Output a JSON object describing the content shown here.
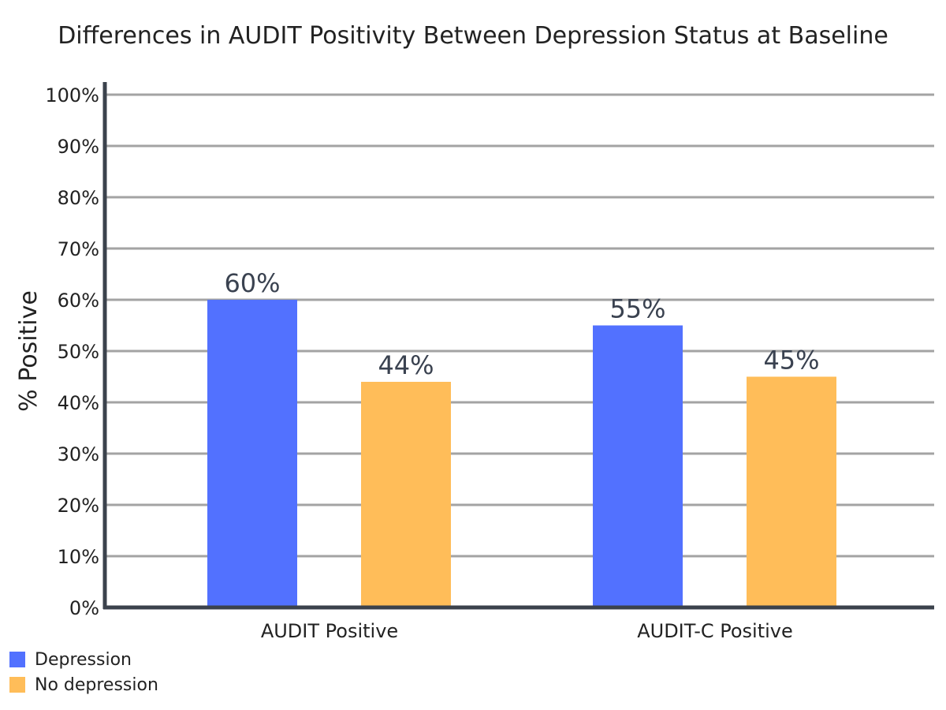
{
  "chart_data": {
    "type": "bar",
    "title": "Differences in AUDIT Positivity Between Depression Status at Baseline",
    "ylabel": "% Positive",
    "xlabel": "",
    "categories": [
      "AUDIT Positive",
      "AUDIT-C Positive"
    ],
    "series": [
      {
        "name": "Depression",
        "color": "#5271ff",
        "values": [
          60,
          55
        ],
        "labels": [
          "60%",
          "55%"
        ]
      },
      {
        "name": "No depression",
        "color": "#ffbd59",
        "values": [
          44,
          45
        ],
        "labels": [
          "44%",
          "45%"
        ]
      }
    ],
    "ylim": [
      0,
      100
    ],
    "yticks": [
      0,
      10,
      20,
      30,
      40,
      50,
      60,
      70,
      80,
      90,
      100
    ],
    "ytick_labels": [
      "0%",
      "10%",
      "20%",
      "30%",
      "40%",
      "50%",
      "60%",
      "70%",
      "80%",
      "90%",
      "100%"
    ],
    "grid": true,
    "legend_position": "bottom-left"
  }
}
